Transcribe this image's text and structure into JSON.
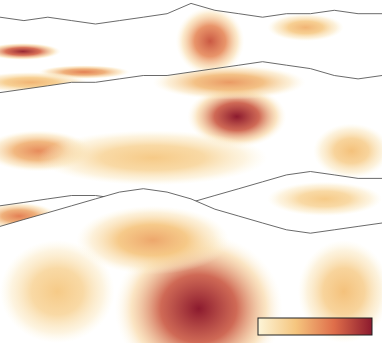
{
  "chart_data": {
    "type": "terrain_heatmap",
    "tick_labels": false,
    "xlim": [
      0,
      100
    ],
    "ylim": [
      0,
      100
    ],
    "colorbar": {
      "range": [
        0,
        1
      ],
      "colors": [
        "#fdf5d8",
        "#f5c57e",
        "#df6e4a",
        "#8c1a2e"
      ]
    },
    "layers": [
      {
        "ridge": [
          5,
          6,
          5,
          6,
          7,
          6,
          5,
          4,
          1,
          3,
          4,
          5,
          4,
          4,
          3,
          4,
          4
        ],
        "hotspots": [
          {
            "x": 6,
            "y": 15,
            "rx": 10,
            "ry": 2.5,
            "value": 0.95
          },
          {
            "x": 22,
            "y": 21,
            "rx": 12,
            "ry": 2,
            "value": 0.6
          },
          {
            "x": 55,
            "y": 12,
            "rx": 9,
            "ry": 10,
            "value": 0.75
          },
          {
            "x": 80,
            "y": 8,
            "rx": 10,
            "ry": 4,
            "value": 0.4
          },
          {
            "x": 8,
            "y": 24,
            "rx": 15,
            "ry": 3,
            "value": 0.4
          }
        ]
      },
      {
        "ridge": [
          27,
          26,
          25,
          24,
          24,
          23,
          22,
          22,
          21,
          20,
          19,
          18,
          19,
          20,
          22,
          23,
          22
        ],
        "hotspots": [
          {
            "x": 62,
            "y": 34,
            "rx": 13,
            "ry": 9,
            "value": 1.0
          },
          {
            "x": 10,
            "y": 44,
            "rx": 14,
            "ry": 6,
            "value": 0.55
          },
          {
            "x": 60,
            "y": 24,
            "rx": 20,
            "ry": 5,
            "value": 0.5
          },
          {
            "x": 92,
            "y": 44,
            "rx": 10,
            "ry": 8,
            "value": 0.35
          },
          {
            "x": 40,
            "y": 46,
            "rx": 30,
            "ry": 8,
            "value": 0.3
          }
        ]
      },
      {
        "ridge": [
          60,
          59,
          58,
          57,
          57,
          58,
          59,
          60,
          59,
          57,
          55,
          53,
          51,
          50,
          51,
          52,
          52
        ],
        "hotspots": [
          {
            "x": 5,
            "y": 63,
            "rx": 10,
            "ry": 4,
            "value": 0.6
          },
          {
            "x": 85,
            "y": 58,
            "rx": 15,
            "ry": 5,
            "value": 0.3
          }
        ]
      },
      {
        "ridge": [
          66,
          64,
          62,
          60,
          58,
          56,
          55,
          56,
          58,
          61,
          63,
          65,
          67,
          68,
          67,
          66,
          65
        ],
        "hotspots": [
          {
            "x": 52,
            "y": 90,
            "rx": 22,
            "ry": 22,
            "value": 1.0
          },
          {
            "x": 40,
            "y": 70,
            "rx": 20,
            "ry": 10,
            "value": 0.45
          },
          {
            "x": 15,
            "y": 85,
            "rx": 15,
            "ry": 15,
            "value": 0.3
          },
          {
            "x": 90,
            "y": 85,
            "rx": 12,
            "ry": 15,
            "value": 0.35
          }
        ]
      }
    ]
  }
}
